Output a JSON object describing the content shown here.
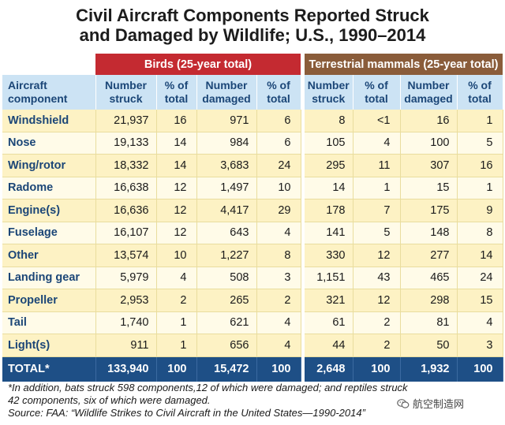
{
  "chart_data": {
    "type": "table",
    "title": [
      "Civil Aircraft Components Reported Struck",
      "and Damaged by Wildlife; U.S., 1990–2014"
    ],
    "groups": {
      "birds": "Birds (25-year total)",
      "mammals": "Terrestrial mammals (25-year total)"
    },
    "columns": [
      [
        "Aircraft",
        "component"
      ],
      [
        "Number",
        "struck"
      ],
      [
        "% of",
        "total"
      ],
      [
        "Number",
        "damaged"
      ],
      [
        "% of",
        "total"
      ],
      [
        "Number",
        "struck"
      ],
      [
        "% of",
        "total"
      ],
      [
        "Number",
        "damaged"
      ],
      [
        "% of",
        "total"
      ]
    ],
    "rows": [
      [
        "Windshield",
        "21,937",
        "16",
        "971",
        "6",
        "8",
        "<1",
        "16",
        "1"
      ],
      [
        "Nose",
        "19,133",
        "14",
        "984",
        "6",
        "105",
        "4",
        "100",
        "5"
      ],
      [
        "Wing/rotor",
        "18,332",
        "14",
        "3,683",
        "24",
        "295",
        "11",
        "307",
        "16"
      ],
      [
        "Radome",
        "16,638",
        "12",
        "1,497",
        "10",
        "14",
        "1",
        "15",
        "1"
      ],
      [
        "Engine(s)",
        "16,636",
        "12",
        "4,417",
        "29",
        "178",
        "7",
        "175",
        "9"
      ],
      [
        "Fuselage",
        "16,107",
        "12",
        "643",
        "4",
        "141",
        "5",
        "148",
        "8"
      ],
      [
        "Other",
        "13,574",
        "10",
        "1,227",
        "8",
        "330",
        "12",
        "277",
        "14"
      ],
      [
        "Landing gear",
        "5,979",
        "4",
        "508",
        "3",
        "1,151",
        "43",
        "465",
        "24"
      ],
      [
        "Propeller",
        "2,953",
        "2",
        "265",
        "2",
        "321",
        "12",
        "298",
        "15"
      ],
      [
        "Tail",
        "1,740",
        "1",
        "621",
        "4",
        "61",
        "2",
        "81",
        "4"
      ],
      [
        "Light(s)",
        "911",
        "1",
        "656",
        "4",
        "44",
        "2",
        "50",
        "3"
      ]
    ],
    "total": [
      "TOTAL*",
      "133,940",
      "100",
      "15,472",
      "100",
      "2,648",
      "100",
      "1,932",
      "100"
    ],
    "footnote": [
      "*In addition, bats struck 598 components,12 of which were damaged; and reptiles struck",
      " 42 components, six of which were damaged."
    ],
    "source": "Source: FAA: “Wildlife Strikes to Civil Aircraft in the United States—1990-2014”"
  },
  "watermark": {
    "text": "航空制造网",
    "icon": "wechat-icon"
  },
  "colors": {
    "birds_header": "#c42a31",
    "mammals_header": "#8a5c3a",
    "column_header": "#cce3f4",
    "header_text": "#1b4677",
    "row_odd": "#fdf2c4",
    "row_even": "#fffbe8",
    "total_row": "#1e4f86"
  }
}
